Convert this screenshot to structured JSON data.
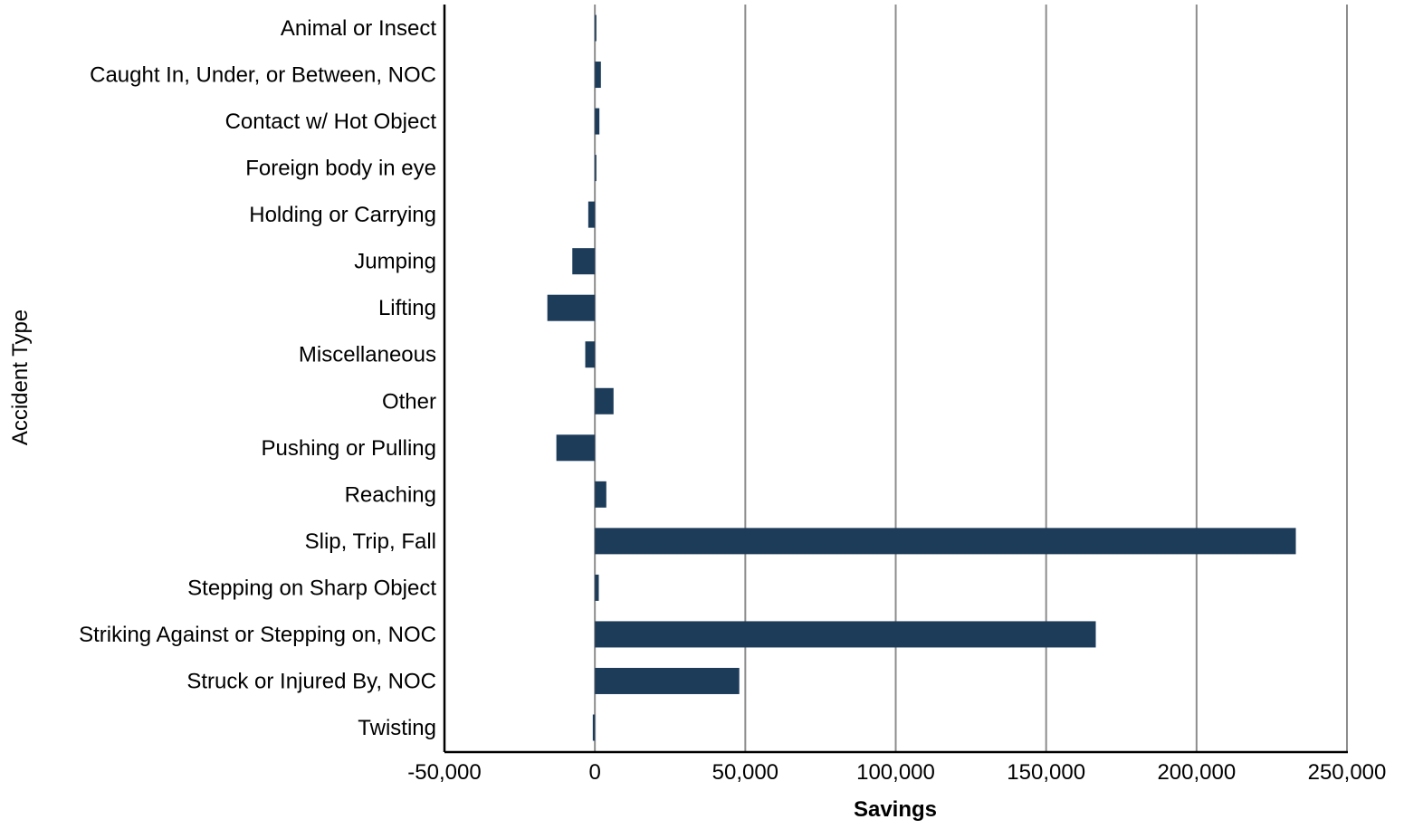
{
  "chart_data": {
    "type": "bar",
    "orientation": "horizontal",
    "xlabel": "Savings",
    "ylabel": "Accident Type",
    "xlim": [
      -50000,
      250000
    ],
    "x_ticks": [
      -50000,
      0,
      50000,
      100000,
      150000,
      200000,
      250000
    ],
    "x_tick_labels": [
      "-50,000",
      "0",
      "50,000",
      "100,000",
      "150,000",
      "200,000",
      "250,000"
    ],
    "grid": "vertical",
    "legend": "none",
    "categories": [
      "Animal or Insect",
      "Caught In, Under, or Between, NOC",
      "Contact w/ Hot Object",
      "Foreign body in eye",
      "Holding or Carrying",
      "Jumping",
      "Lifting",
      "Miscellaneous",
      "Other",
      "Pushing or Pulling",
      "Reaching",
      "Slip, Trip, Fall",
      "Stepping on Sharp Object",
      "Striking Against or Stepping on, NOC",
      "Struck or Injured By, NOC",
      "Twisting"
    ],
    "values": [
      500,
      2000,
      1500,
      500,
      -2200,
      -7500,
      -15800,
      -3200,
      6200,
      -12800,
      3800,
      233000,
      1300,
      166500,
      48000,
      -700
    ],
    "bar_color": "#1d3c5a",
    "grid_color": "#8c8c8c"
  }
}
